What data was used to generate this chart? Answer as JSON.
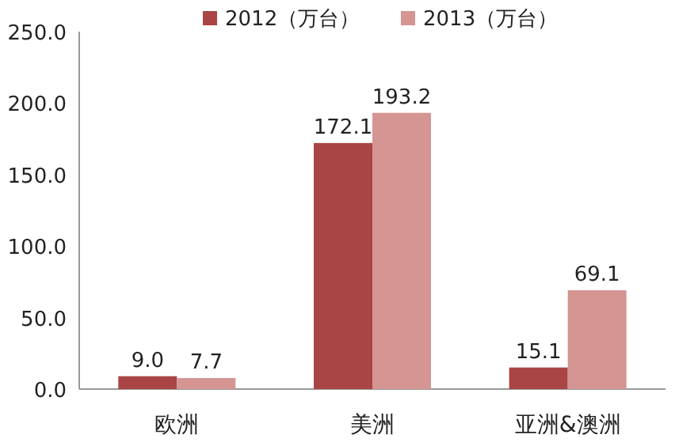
{
  "chart_data": {
    "type": "bar",
    "categories": [
      "欧洲",
      "美洲",
      "亚洲&澳洲"
    ],
    "series": [
      {
        "name": "2012（万台）",
        "color": "#a94545",
        "values": [
          9.0,
          172.1,
          15.1
        ],
        "value_labels": [
          "9.0",
          "172.1",
          "15.1"
        ]
      },
      {
        "name": "2013（万台）",
        "color": "#d49593",
        "values": [
          7.7,
          193.2,
          69.1
        ],
        "value_labels": [
          "7.7",
          "193.2",
          "69.1"
        ]
      }
    ],
    "ylim": [
      0,
      250
    ],
    "yticks": [
      {
        "value": 0,
        "label": "0.0"
      },
      {
        "value": 50,
        "label": "50.0"
      },
      {
        "value": 100,
        "label": "100.0"
      },
      {
        "value": 150,
        "label": "150.0"
      },
      {
        "value": 200,
        "label": "200.0"
      },
      {
        "value": 250,
        "label": "250.0"
      }
    ],
    "grid": false,
    "legend": "top"
  }
}
